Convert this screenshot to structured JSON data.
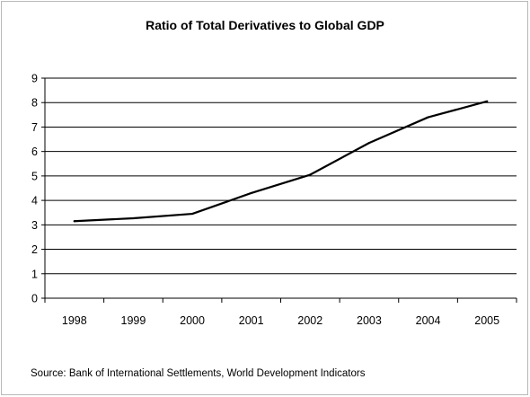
{
  "chart_data": {
    "type": "line",
    "title": "Ratio of Total Derivatives to Global GDP",
    "xlabel": "",
    "ylabel": "",
    "categories": [
      "1998",
      "1999",
      "2000",
      "2001",
      "2002",
      "2003",
      "2004",
      "2005"
    ],
    "series": [
      {
        "values": [
          3.15,
          3.27,
          3.45,
          4.3,
          5.05,
          6.35,
          7.4,
          8.05
        ]
      }
    ],
    "yticks": [
      "0",
      "1",
      "2",
      "3",
      "4",
      "5",
      "6",
      "7",
      "8",
      "9"
    ],
    "ylim": [
      0,
      9
    ],
    "grid": "horizontal",
    "legend": "none",
    "line_color": "#000000"
  },
  "source_note": "Source: Bank of International Settlements, World Development Indicators"
}
